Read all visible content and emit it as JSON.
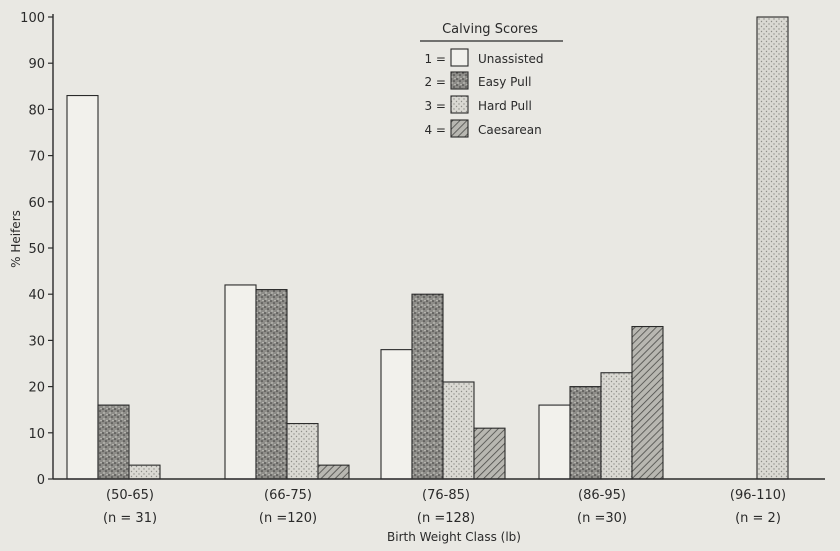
{
  "chart_data": {
    "type": "bar",
    "ylabel": "% Heifers",
    "xlabel": "Birth Weight Class (lb)",
    "ylim": [
      0,
      100
    ],
    "yticks": [
      0,
      10,
      20,
      30,
      40,
      50,
      60,
      70,
      80,
      90,
      100
    ],
    "grid": false,
    "legend": {
      "title": "Calving Scores",
      "placement": "top-center",
      "entries": [
        {
          "code": "1 =",
          "name": "Unassisted"
        },
        {
          "code": "2 =",
          "name": "Easy Pull"
        },
        {
          "code": "3 =",
          "name": "Hard Pull"
        },
        {
          "code": "4 =",
          "name": "Caesarean"
        }
      ]
    },
    "categories": [
      {
        "label": "(50-65)",
        "n": "(n = 31)"
      },
      {
        "label": "(66-75)",
        "n": "(n =120)"
      },
      {
        "label": "(76-85)",
        "n": "(n =128)"
      },
      {
        "label": "(86-95)",
        "n": "(n =30)"
      },
      {
        "label": "(96-110)",
        "n": "(n = 2)"
      }
    ],
    "series": [
      {
        "name": "Unassisted",
        "pattern": "plain",
        "values": [
          83,
          42,
          28,
          16,
          0
        ]
      },
      {
        "name": "Easy Pull",
        "pattern": "dense-speckle",
        "values": [
          16,
          41,
          40,
          20,
          0
        ]
      },
      {
        "name": "Hard Pull",
        "pattern": "light-dots",
        "values": [
          3,
          12,
          21,
          23,
          100
        ]
      },
      {
        "name": "Caesarean",
        "pattern": "diagonal-hatch",
        "values": [
          0,
          3,
          11,
          33,
          0
        ]
      }
    ]
  }
}
